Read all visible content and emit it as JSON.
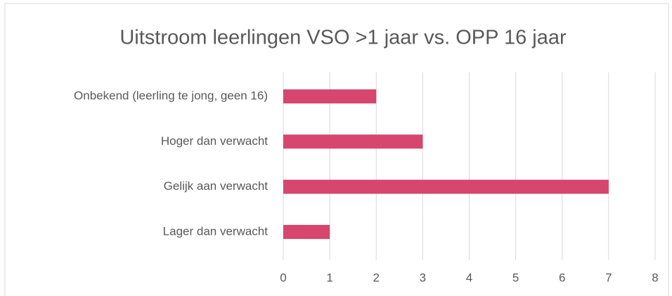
{
  "chart_data": {
    "type": "hbar",
    "title": "Uitstroom leerlingen VSO >1 jaar vs. OPP 16 jaar",
    "categories": [
      "Onbekend (leerling te jong, geen 16)",
      "Hoger dan verwacht",
      "Gelijk aan verwacht",
      "Lager dan verwacht"
    ],
    "values": [
      2,
      3,
      7,
      1
    ],
    "color": "#d6466f",
    "xlim": [
      0,
      8
    ],
    "xticks": [
      0,
      1,
      2,
      3,
      4,
      5,
      6,
      7,
      8
    ],
    "grid": true
  }
}
